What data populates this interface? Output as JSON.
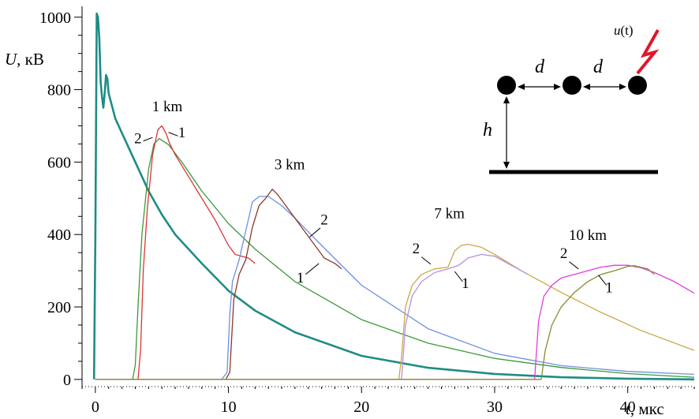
{
  "chart_data": {
    "type": "line",
    "xlabel_var": "t",
    "xlabel_unit": ", мкс",
    "ylabel_var": "U",
    "ylabel_unit": ", кВ",
    "xlim": [
      -1,
      45
    ],
    "ylim": [
      -20,
      1030
    ],
    "x_ticks": [
      0,
      10,
      20,
      30,
      40
    ],
    "x_tick_labels": [
      "0",
      "10",
      "20",
      "30",
      "40"
    ],
    "y_ticks": [
      0,
      200,
      400,
      600,
      800,
      1000
    ],
    "y_tick_labels": [
      "0",
      "200",
      "400",
      "600",
      "800",
      "1000"
    ],
    "grid": false,
    "legend": "none",
    "group_labels": [
      {
        "text": "1 km",
        "x": 5.4,
        "y": 740
      },
      {
        "text": "3 km",
        "x": 14.6,
        "y": 580
      },
      {
        "text": "7 km",
        "x": 26.6,
        "y": 445
      },
      {
        "text": "10 km",
        "x": 37.0,
        "y": 385
      }
    ],
    "curve_labels": [
      {
        "text": "2",
        "x": 3.2,
        "y": 652,
        "lx1": 3.6,
        "ly1": 658,
        "lx2": 4.3,
        "ly2": 668
      },
      {
        "text": "1",
        "x": 6.5,
        "y": 668,
        "lx1": 6.2,
        "ly1": 672,
        "lx2": 5.5,
        "ly2": 682
      },
      {
        "text": "2",
        "x": 17.2,
        "y": 428,
        "lx1": 16.9,
        "ly1": 418,
        "lx2": 16.1,
        "ly2": 393
      },
      {
        "text": "1",
        "x": 15.4,
        "y": 268,
        "lx1": 15.8,
        "ly1": 290,
        "lx2": 16.8,
        "ly2": 320
      },
      {
        "text": "2",
        "x": 24.1,
        "y": 348,
        "lx1": 24.5,
        "ly1": 338,
        "lx2": 25.2,
        "ly2": 318
      },
      {
        "text": "1",
        "x": 27.8,
        "y": 252,
        "lx1": 27.6,
        "ly1": 270,
        "lx2": 27.0,
        "ly2": 298
      },
      {
        "text": "2",
        "x": 35.2,
        "y": 335,
        "lx1": 35.6,
        "ly1": 325,
        "lx2": 36.3,
        "ly2": 305
      },
      {
        "text": "1",
        "x": 38.6,
        "y": 240,
        "lx1": 38.4,
        "ly1": 260,
        "lx2": 37.8,
        "ly2": 288
      }
    ],
    "series": [
      {
        "color": "#1e8c84",
        "width": 2.6,
        "x": [
          -0.1,
          0,
          0.1,
          0.2,
          0.3,
          0.4,
          0.5,
          0.6,
          0.7,
          0.8,
          0.9,
          1.0,
          1.5,
          2,
          3,
          4,
          5,
          6,
          8,
          10,
          12,
          15,
          20,
          25,
          30,
          35,
          40,
          45
        ],
        "y": [
          0,
          400,
          1010,
          1000,
          940,
          820,
          780,
          750,
          790,
          840,
          830,
          790,
          720,
          680,
          600,
          520,
          455,
          400,
          320,
          245,
          190,
          130,
          65,
          32,
          15,
          6,
          2,
          0
        ]
      },
      {
        "color": "#3a9a3a",
        "width": 1.3,
        "x": [
          0,
          2.8,
          3.0,
          3.2,
          3.5,
          4.0,
          4.4,
          4.8,
          5.5,
          6.5,
          8,
          10,
          12,
          15,
          20,
          25,
          30,
          35,
          40,
          45
        ],
        "y": [
          0,
          0,
          40,
          200,
          400,
          580,
          650,
          665,
          648,
          600,
          520,
          430,
          360,
          270,
          165,
          100,
          58,
          33,
          16,
          6
        ]
      },
      {
        "color": "#dd3333",
        "width": 1.3,
        "x": [
          0,
          3.2,
          3.4,
          3.6,
          3.9,
          4.3,
          4.7,
          5.0,
          5.3,
          5.6,
          6.0,
          7,
          8,
          9,
          10,
          10.5,
          11,
          11.5,
          12
        ],
        "y": [
          0,
          0,
          80,
          300,
          470,
          620,
          690,
          700,
          680,
          650,
          620,
          560,
          500,
          440,
          370,
          345,
          340,
          335,
          320
        ]
      },
      {
        "color": "#6f8fe0",
        "width": 1.3,
        "x": [
          0,
          9.5,
          9.9,
          10.1,
          10.3,
          10.8,
          11.3,
          11.8,
          12.3,
          13.0,
          14,
          15,
          17,
          20,
          25,
          30,
          35,
          40,
          45
        ],
        "y": [
          0,
          0,
          20,
          180,
          270,
          330,
          410,
          490,
          505,
          505,
          480,
          445,
          370,
          260,
          140,
          72,
          38,
          22,
          14
        ]
      },
      {
        "color": "#8b3a2a",
        "width": 1.3,
        "x": [
          0,
          9.8,
          10.1,
          10.4,
          10.8,
          11.3,
          11.8,
          12.3,
          12.8,
          13.3,
          13.7,
          14.5,
          15.5,
          16.5,
          17.2,
          18.0,
          18.5
        ],
        "y": [
          0,
          0,
          20,
          220,
          290,
          330,
          420,
          480,
          500,
          525,
          510,
          470,
          420,
          370,
          335,
          320,
          305
        ]
      },
      {
        "color": "#c9a845",
        "width": 1.3,
        "x": [
          0,
          22.8,
          23.0,
          23.3,
          23.8,
          24.5,
          25.5,
          26.5,
          27.0,
          27.5,
          28.0,
          29.0,
          30,
          32,
          35,
          38,
          41,
          45
        ],
        "y": [
          0,
          0,
          60,
          200,
          260,
          290,
          305,
          310,
          355,
          370,
          373,
          365,
          345,
          300,
          240,
          185,
          135,
          80
        ]
      },
      {
        "color": "#b98fe0",
        "width": 1.3,
        "x": [
          0,
          23.0,
          23.3,
          23.8,
          24.5,
          25.5,
          26.5,
          27.3,
          28.0,
          29.0,
          30.0,
          31.0,
          32.0,
          32.5
        ],
        "y": [
          0,
          0,
          150,
          230,
          270,
          295,
          305,
          315,
          335,
          345,
          340,
          320,
          300,
          290
        ]
      },
      {
        "color": "#e23be2",
        "width": 1.3,
        "x": [
          0,
          33.0,
          33.3,
          33.7,
          34.3,
          35.0,
          36.0,
          37.0,
          38.0,
          39.0,
          40.0,
          41.0,
          42.0,
          43.5,
          45
        ],
        "y": [
          0,
          0,
          160,
          230,
          260,
          280,
          290,
          300,
          310,
          315,
          315,
          308,
          295,
          270,
          238
        ]
      },
      {
        "color": "#8a8a30",
        "width": 1.3,
        "x": [
          0,
          33.5,
          33.8,
          34.3,
          35.0,
          36.0,
          37.0,
          38.0,
          39.0,
          40.0,
          40.5,
          41.5,
          42.0
        ],
        "y": [
          0,
          0,
          80,
          150,
          200,
          240,
          270,
          290,
          300,
          312,
          314,
          305,
          290
        ]
      }
    ]
  },
  "inset": {
    "u_label": "u",
    "u_arg": "(t)",
    "d_label_1": "d",
    "d_label_2": "d",
    "h_label": "h",
    "lightning_color": "#e0162b"
  }
}
